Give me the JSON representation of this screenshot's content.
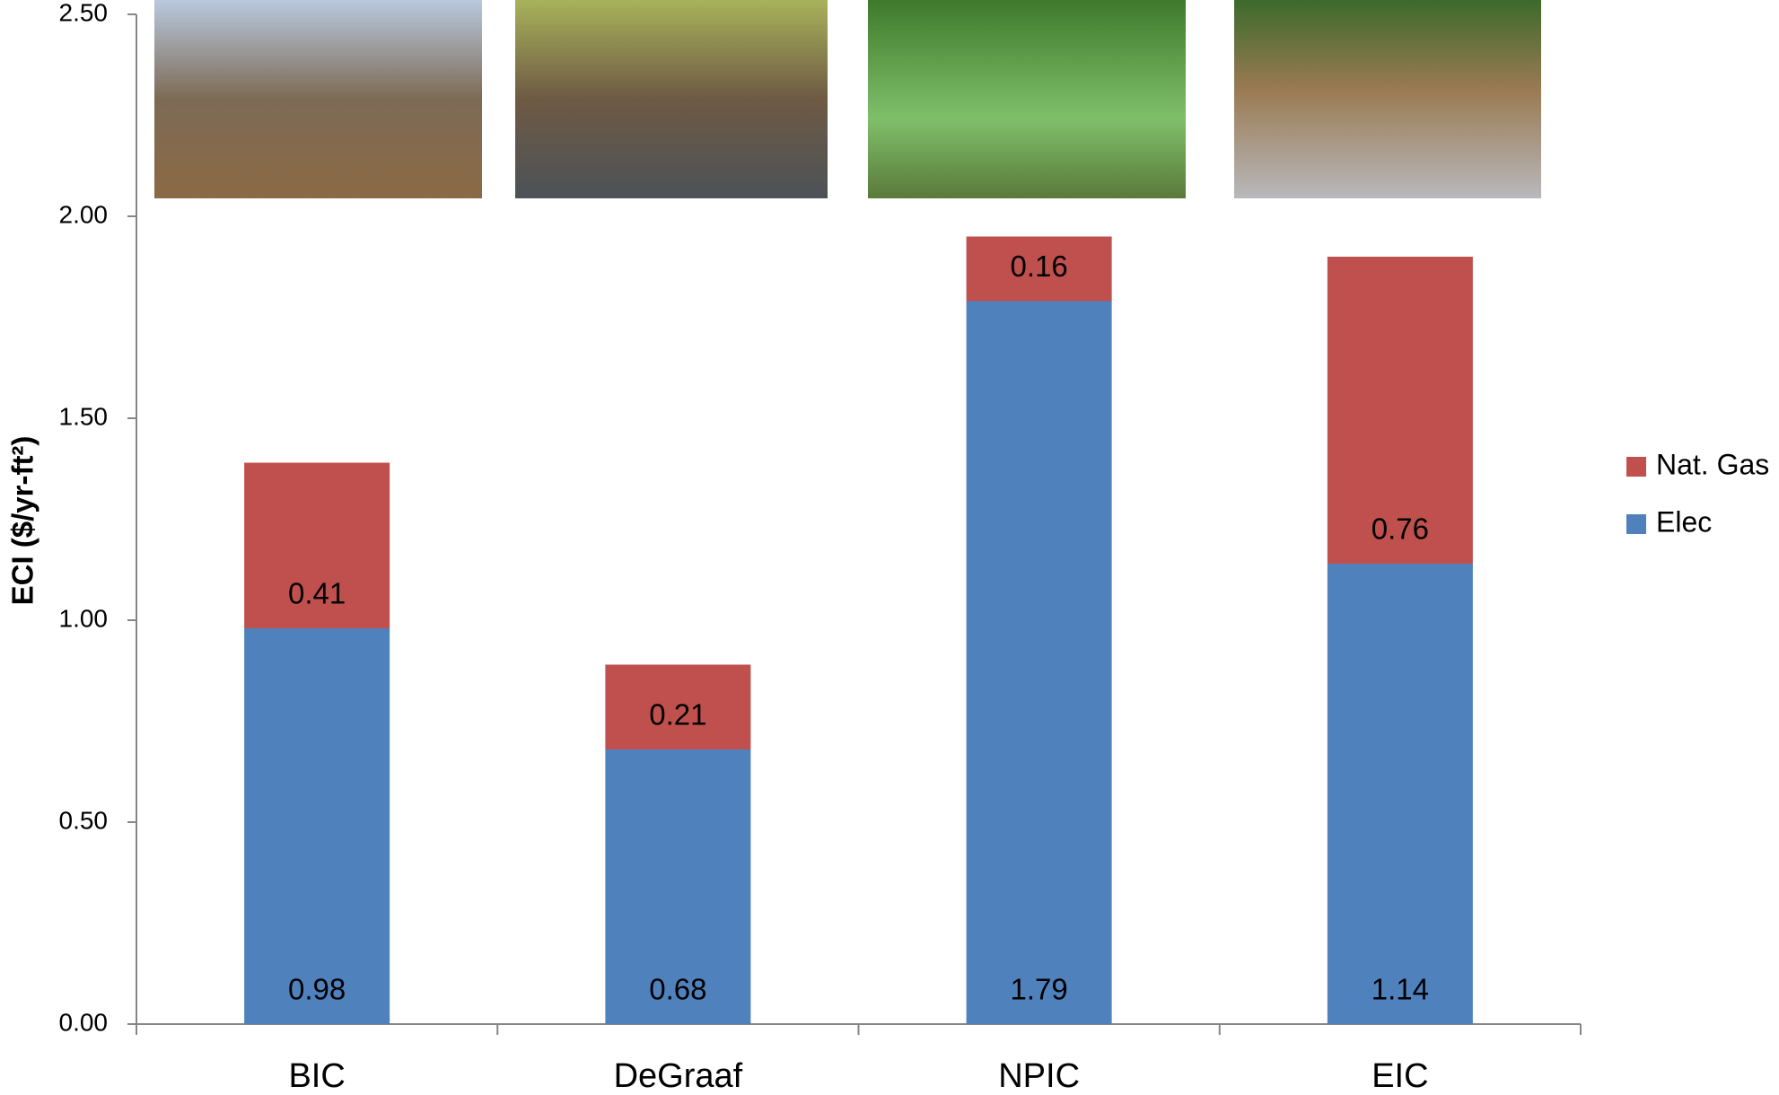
{
  "chart_data": {
    "type": "stacked_bar",
    "ylabel": "ECI ($/yr-ft²)",
    "categories": [
      "BIC",
      "DeGraaf",
      "NPIC",
      "EIC"
    ],
    "series": [
      {
        "name": "Elec",
        "color": "#4f81bd",
        "values": [
          0.98,
          0.68,
          1.79,
          1.14
        ]
      },
      {
        "name": "Nat. Gas",
        "color": "#c0504d",
        "values": [
          0.41,
          0.21,
          0.16,
          0.76
        ]
      }
    ],
    "ylim": [
      0,
      2.5
    ],
    "yticks": [
      {
        "value": 0,
        "label": "0.00"
      },
      {
        "value": 0.5,
        "label": "0.50"
      },
      {
        "value": 1,
        "label": "1.00"
      },
      {
        "value": 1.5,
        "label": "1.50"
      },
      {
        "value": 2,
        "label": "2.00"
      },
      {
        "value": 2.5,
        "label": "2.50"
      }
    ],
    "legend": "right"
  }
}
